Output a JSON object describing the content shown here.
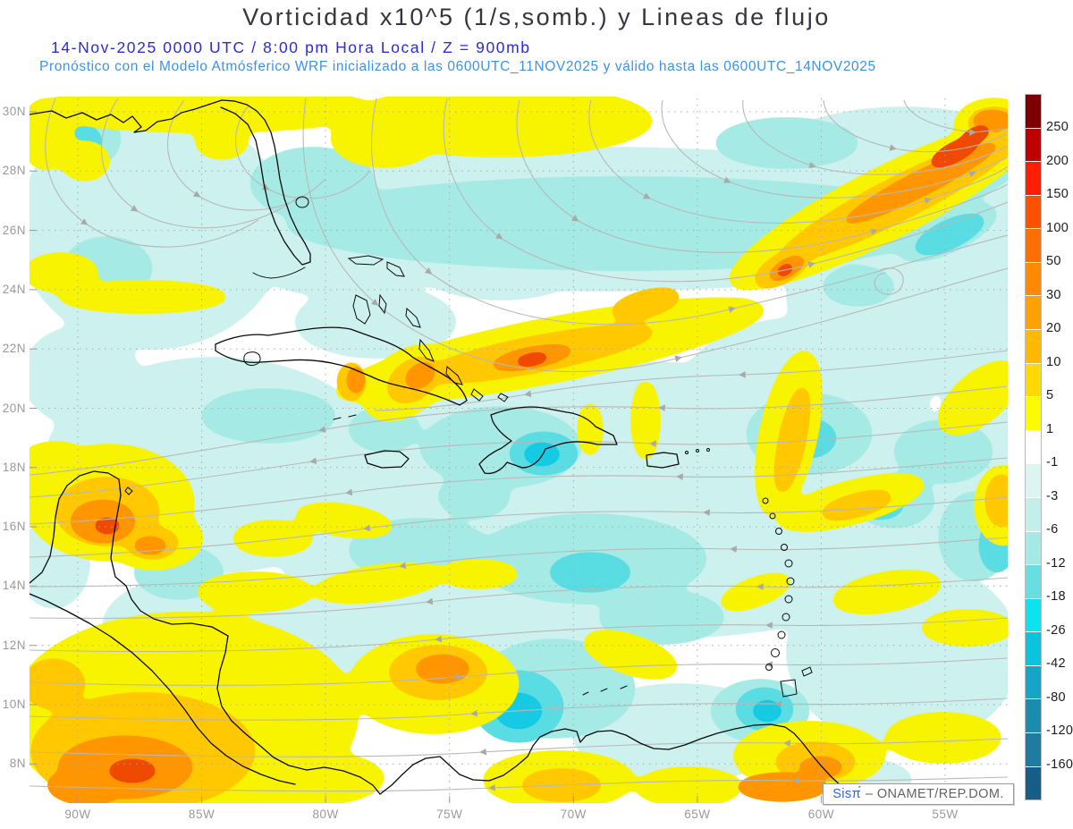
{
  "header": {
    "title": "Vorticidad x10^5 (1/s,somb.) y Lineas de flujo",
    "subtitle_datetime": "14-Nov-2025  0000 UTC / 8:00 pm Hora Local / Z = 900mb",
    "subtitle_model": "Pronóstico con el Modelo Atmósferico WRF inicializado a las 0600UTC_11NOV2025 y válido hasta las  0600UTC_14NOV2025"
  },
  "map": {
    "lat_labels": [
      "30N",
      "28N",
      "26N",
      "24N",
      "22N",
      "20N",
      "18N",
      "16N",
      "14N",
      "12N",
      "10N",
      "8N"
    ],
    "lon_labels": [
      "90W",
      "85W",
      "80W",
      "75W",
      "70W",
      "65W",
      "60W",
      "55W"
    ]
  },
  "colorbar": {
    "tick_labels": [
      "250",
      "200",
      "150",
      "100",
      "50",
      "30",
      "20",
      "10",
      "5",
      "1",
      "-1",
      "-3",
      "-6",
      "-12",
      "-18",
      "-26",
      "-42",
      "-80",
      "-120",
      "-160"
    ],
    "segment_colors": [
      "#7D0000",
      "#C00000",
      "#FF1E00",
      "#FF5000",
      "#FF6E00",
      "#FF8900",
      "#FFA100",
      "#FFB900",
      "#FFD900",
      "#FBFB00",
      "#FFFFFF",
      "#DCF5F2",
      "#C3EFEA",
      "#A4E9E4",
      "#68DEE1",
      "#0DE2EF",
      "#0AC4DE",
      "#15A5C9",
      "#1C8BAE",
      "#1F7BA1",
      "#165E88"
    ]
  },
  "attribution": {
    "brand": "Sisπ́",
    "rest": "– ONAMET/REP.DOM."
  },
  "chart_data": {
    "type": "heatmap",
    "title": "Vorticidad x10^5 (1/s,somb.) y Lineas de flujo",
    "variable": "relative vorticity x10^5 (1/s), shaded, with streamlines",
    "pressure_level": "900mb",
    "valid_time": "14-Nov-2025 0000 UTC / 8:00 pm Hora Local",
    "model_run": "WRF inicializado 0600UTC_11NOV2025, válido hasta 0600UTC_14NOV2025",
    "x_tick_labels": [
      "90W",
      "85W",
      "80W",
      "75W",
      "70W",
      "65W",
      "60W",
      "55W"
    ],
    "y_tick_labels": [
      "30N",
      "28N",
      "26N",
      "24N",
      "22N",
      "20N",
      "18N",
      "16N",
      "14N",
      "12N",
      "10N",
      "8N"
    ],
    "lon_range_deg_w": [
      92,
      52.5
    ],
    "lat_range_deg_n": [
      6.6,
      30.5
    ],
    "colorbar_levels": [
      250,
      200,
      150,
      100,
      50,
      30,
      20,
      10,
      5,
      1,
      -1,
      -3,
      -6,
      -12,
      -18,
      -26,
      -42,
      -80,
      -120,
      -160
    ],
    "colorbar_colors": [
      "#7D0000",
      "#C00000",
      "#FF1E00",
      "#FF5000",
      "#FF6E00",
      "#FF8900",
      "#FFA100",
      "#FFB900",
      "#FFD900",
      "#FBFB00",
      "#FFFFFF",
      "#DCF5F2",
      "#C3EFEA",
      "#A4E9E4",
      "#68DEE1",
      "#0DE2EF",
      "#0AC4DE",
      "#15A5C9",
      "#1C8BAE",
      "#1F7BA1",
      "#165E88"
    ],
    "legend_position": "right",
    "grid": "dotted",
    "region": "Gulf of Mexico / Caribbean / Antilles"
  }
}
